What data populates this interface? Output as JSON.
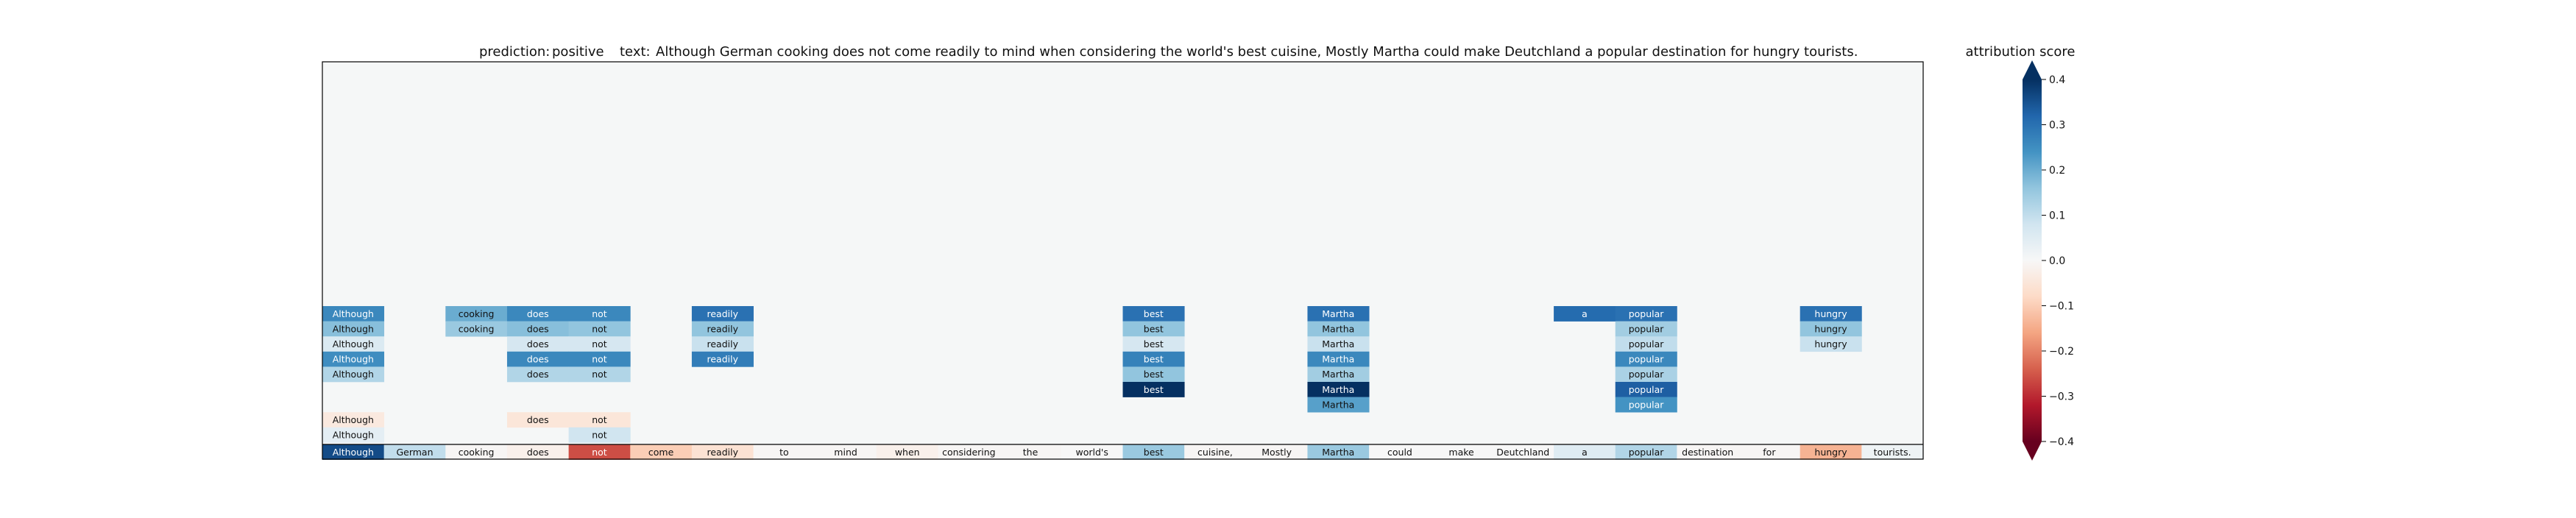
{
  "chart_data": {
    "type": "heatmap",
    "title_prefix": "prediction:",
    "prediction": "positive",
    "text_prefix": "text:",
    "text": "Although German cooking does not come readily to mind when considering the world's best cuisine, Mostly Martha could make Deutchland a popular destination for hungry tourists.",
    "tokens": [
      "Although",
      "German",
      "cooking",
      "does",
      "not",
      "come",
      "readily",
      "to",
      "mind",
      "when",
      "considering",
      "the",
      "world's",
      "best",
      "cuisine,",
      "Mostly",
      "Martha",
      "could",
      "make",
      "Deutchland",
      "a",
      "popular",
      "destination",
      "for",
      "hungry",
      "tourists."
    ],
    "token_scores": [
      0.36,
      0.1,
      -0.005,
      -0.02,
      -0.26,
      -0.1,
      -0.06,
      -0.005,
      -0.005,
      -0.02,
      -0.005,
      -0.005,
      0.0,
      0.15,
      -0.005,
      -0.005,
      0.15,
      0.0,
      0.0,
      0.0,
      0.05,
      0.12,
      -0.005,
      -0.005,
      -0.14,
      0.02
    ],
    "rows": [
      {
        "row": 1,
        "cells": [
          {
            "i": 0,
            "v": 0.26
          },
          {
            "i": 2,
            "v": 0.2
          },
          {
            "i": 3,
            "v": 0.26
          },
          {
            "i": 4,
            "v": 0.26
          },
          {
            "i": 6,
            "v": 0.3
          },
          {
            "i": 13,
            "v": 0.3
          },
          {
            "i": 16,
            "v": 0.3
          },
          {
            "i": 20,
            "v": 0.31
          },
          {
            "i": 21,
            "v": 0.3
          },
          {
            "i": 24,
            "v": 0.3
          }
        ]
      },
      {
        "row": 2,
        "cells": [
          {
            "i": 0,
            "v": 0.17
          },
          {
            "i": 2,
            "v": 0.15
          },
          {
            "i": 3,
            "v": 0.17
          },
          {
            "i": 4,
            "v": 0.16
          },
          {
            "i": 6,
            "v": 0.16
          },
          {
            "i": 13,
            "v": 0.16
          },
          {
            "i": 16,
            "v": 0.16
          },
          {
            "i": 21,
            "v": 0.14
          },
          {
            "i": 24,
            "v": 0.16
          }
        ]
      },
      {
        "row": 3,
        "cells": [
          {
            "i": 0,
            "v": 0.06
          },
          {
            "i": 3,
            "v": 0.07
          },
          {
            "i": 4,
            "v": 0.07
          },
          {
            "i": 6,
            "v": 0.09
          },
          {
            "i": 13,
            "v": 0.07
          },
          {
            "i": 16,
            "v": 0.09
          },
          {
            "i": 21,
            "v": 0.1
          },
          {
            "i": 24,
            "v": 0.09
          }
        ]
      },
      {
        "row": 4,
        "cells": [
          {
            "i": 0,
            "v": 0.25
          },
          {
            "i": 3,
            "v": 0.26
          },
          {
            "i": 4,
            "v": 0.26
          },
          {
            "i": 6,
            "v": 0.28
          },
          {
            "i": 13,
            "v": 0.27
          },
          {
            "i": 16,
            "v": 0.26
          },
          {
            "i": 21,
            "v": 0.26
          }
        ]
      },
      {
        "row": 5,
        "cells": [
          {
            "i": 0,
            "v": 0.12
          },
          {
            "i": 3,
            "v": 0.12
          },
          {
            "i": 4,
            "v": 0.12
          },
          {
            "i": 13,
            "v": 0.16
          },
          {
            "i": 16,
            "v": 0.14
          },
          {
            "i": 21,
            "v": 0.13
          }
        ]
      },
      {
        "row": 6,
        "cells": [
          {
            "i": 13,
            "v": 0.4
          },
          {
            "i": 16,
            "v": 0.4
          },
          {
            "i": 21,
            "v": 0.33
          }
        ]
      },
      {
        "row": 7,
        "cells": [
          {
            "i": 16,
            "v": 0.22
          },
          {
            "i": 21,
            "v": 0.24
          }
        ]
      },
      {
        "row": 8,
        "cells": [
          {
            "i": 0,
            "v": -0.04
          },
          {
            "i": 3,
            "v": -0.05
          },
          {
            "i": 4,
            "v": -0.05
          }
        ]
      },
      {
        "row": 9,
        "cells": [
          {
            "i": 0,
            "v": 0.04
          },
          {
            "i": 4,
            "v": 0.08
          }
        ]
      }
    ],
    "colorbar": {
      "label": "attribution score",
      "min": -0.4,
      "max": 0.4,
      "ticks": [
        -0.4,
        -0.3,
        -0.2,
        -0.1,
        0.0,
        0.1,
        0.2,
        0.3,
        0.4
      ],
      "tick_labels": [
        "−0.4",
        "−0.3",
        "−0.2",
        "−0.1",
        "0.0",
        "0.1",
        "0.2",
        "0.3",
        "0.4"
      ],
      "cmap": "RdBu",
      "extend": "both"
    },
    "colors": {
      "background": "#f5f7f7",
      "neg_dark": "#67001f",
      "neg_mid": "#d6604d",
      "neutral": "#f7f7f7",
      "pos_mid": "#4393c3",
      "pos_dark": "#053061"
    }
  }
}
